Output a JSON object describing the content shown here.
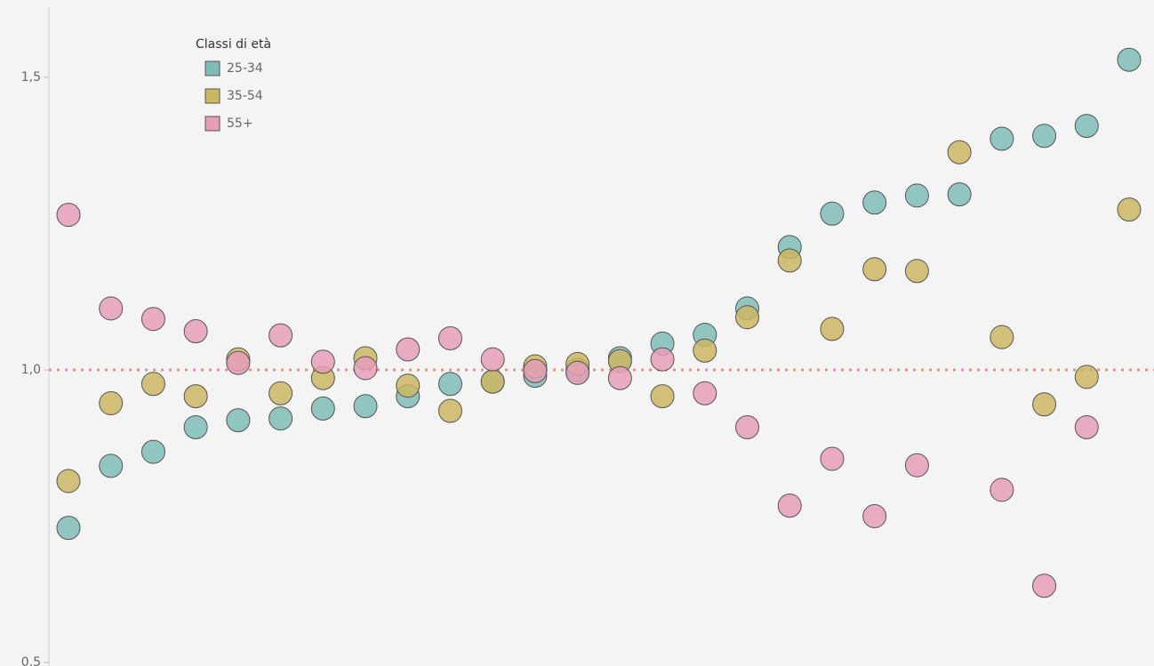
{
  "chart_data": {
    "type": "scatter",
    "legend_title": "Classi di età",
    "categories": [
      null,
      null,
      null,
      null,
      null,
      null,
      null,
      null,
      null,
      null,
      null,
      null,
      null,
      null,
      null,
      null,
      null,
      null,
      null,
      null,
      null,
      null,
      null,
      null,
      null,
      null
    ],
    "series": [
      {
        "name": "25-34",
        "color": "#7fbcb6",
        "values": [
          0.73,
          0.836,
          0.86,
          0.902,
          0.914,
          0.917,
          0.934,
          0.938,
          0.955,
          0.976,
          0.98,
          0.99,
          1.0,
          1.02,
          1.045,
          1.06,
          1.105,
          1.21,
          1.267,
          1.286,
          1.298,
          1.3,
          1.395,
          1.4,
          1.417,
          1.53
        ]
      },
      {
        "name": "35-54",
        "color": "#cbb663",
        "values": [
          0.81,
          0.943,
          0.976,
          0.955,
          1.018,
          0.96,
          0.986,
          1.02,
          0.973,
          0.93,
          0.98,
          1.006,
          1.01,
          1.015,
          0.955,
          1.033,
          1.09,
          1.187,
          1.07,
          1.172,
          1.169,
          1.372,
          1.056,
          0.941,
          0.988,
          1.274
        ]
      },
      {
        "name": "55+",
        "color": "#e59eb7",
        "values": [
          1.265,
          1.105,
          1.087,
          1.066,
          1.012,
          1.059,
          1.014,
          1.003,
          1.035,
          1.054,
          1.018,
          0.998,
          0.995,
          0.986,
          1.018,
          0.96,
          0.902,
          0.768,
          0.848,
          0.75,
          0.837,
          null,
          0.795,
          0.631,
          0.902,
          null
        ]
      }
    ],
    "ylim": [
      0.5,
      1.62
    ],
    "yticks": [
      {
        "value": 0.5,
        "label": "0,5"
      },
      {
        "value": 1.0,
        "label": "1,0"
      },
      {
        "value": 1.5,
        "label": "1,5"
      }
    ],
    "reference_line": 1.0,
    "reference_color": "#e8908a",
    "grid": false
  }
}
